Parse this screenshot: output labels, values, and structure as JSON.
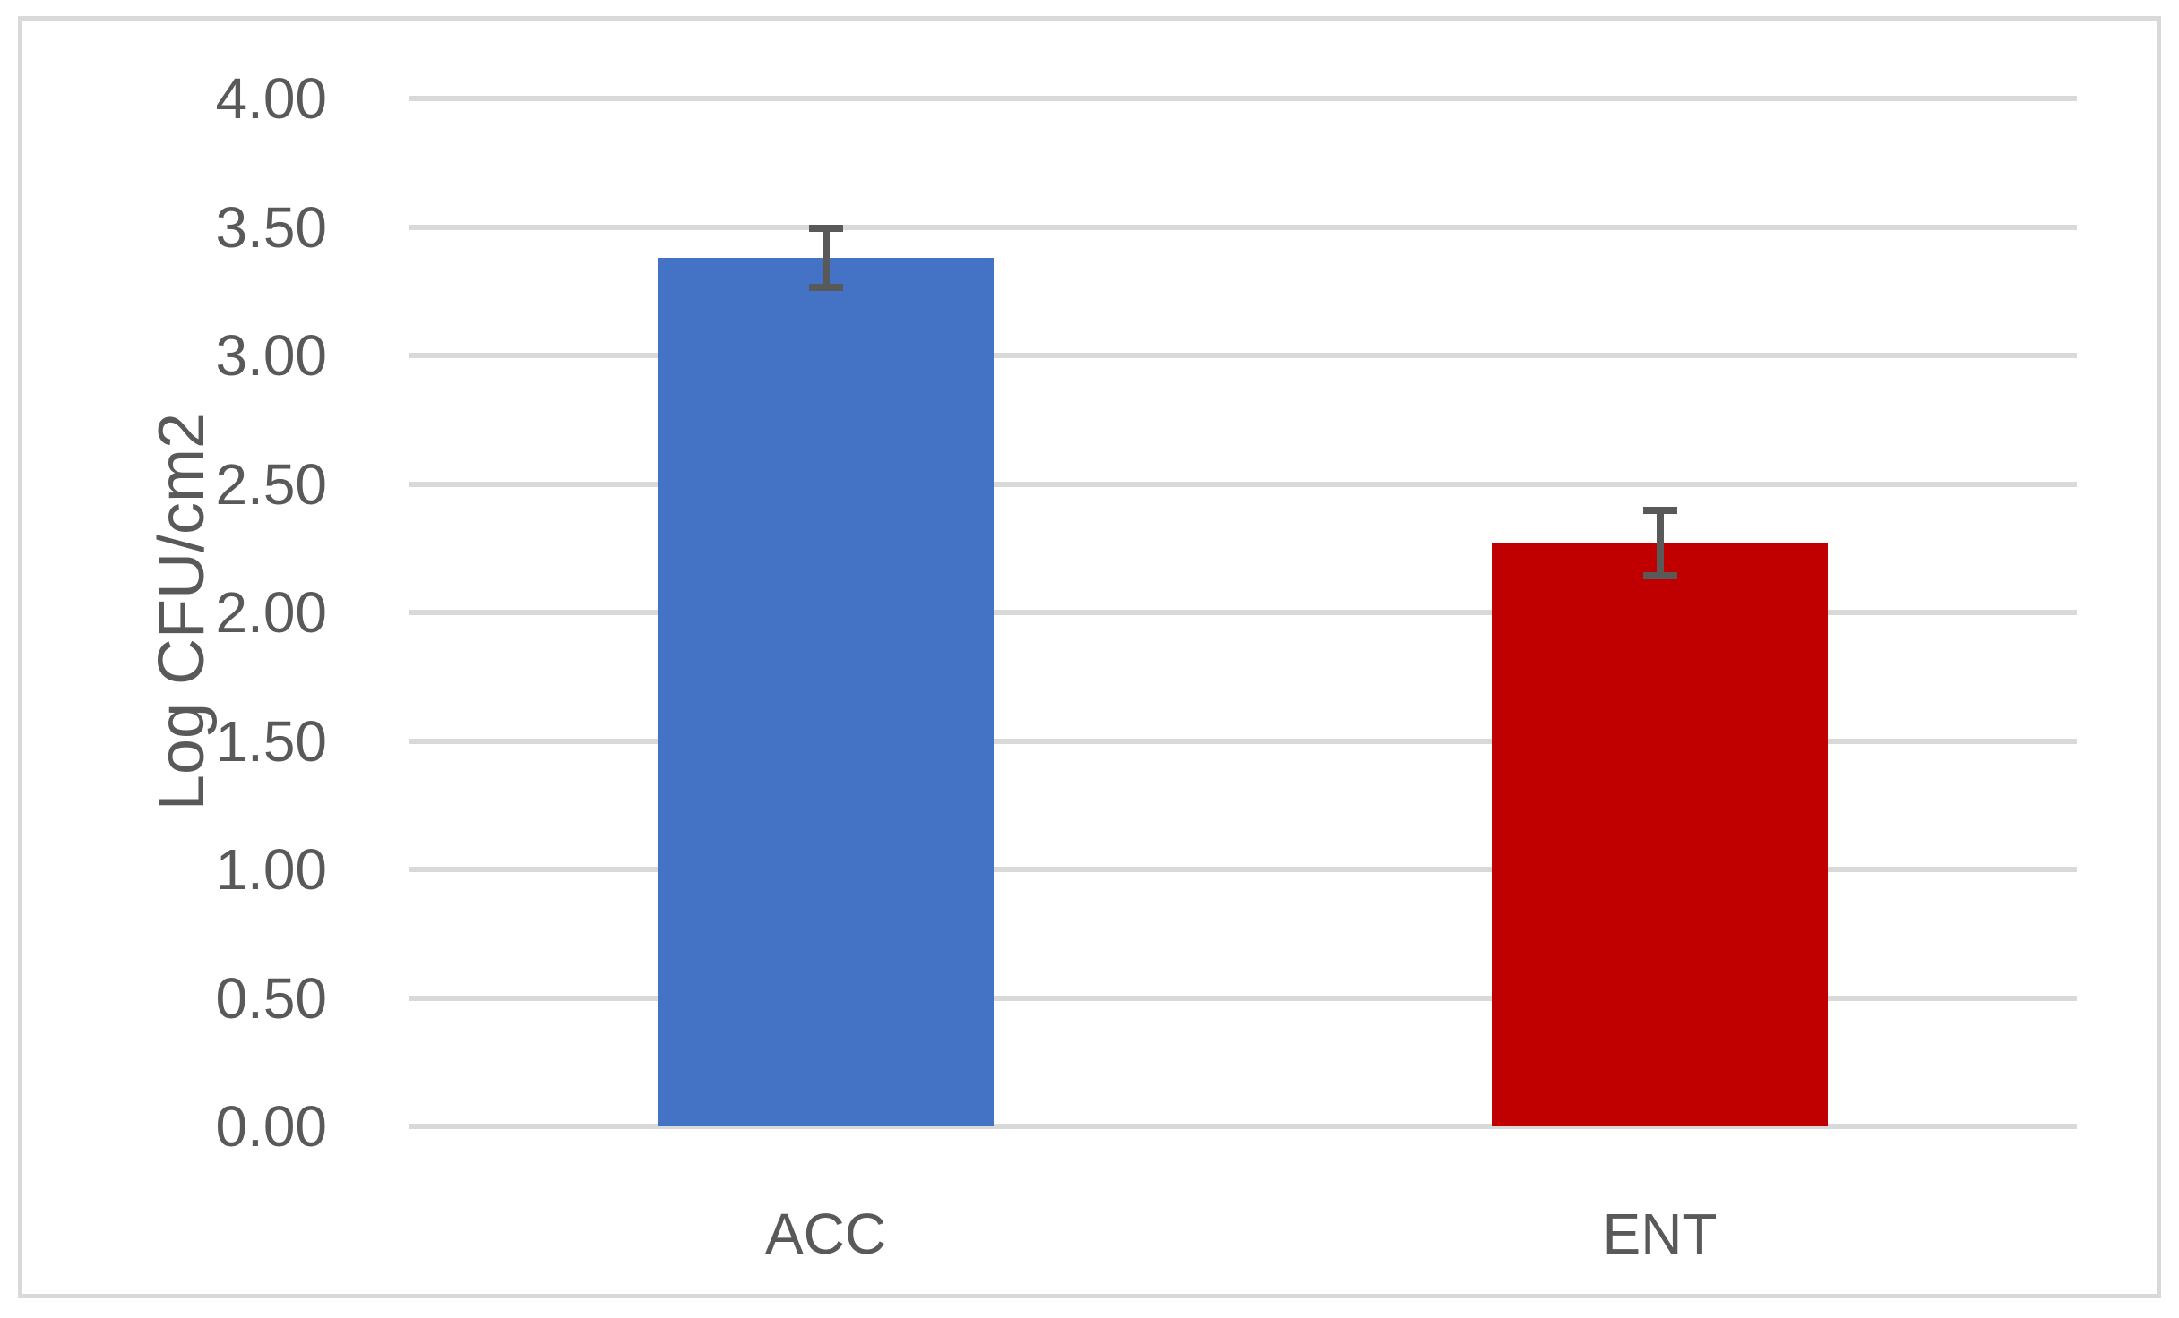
{
  "chart_data": {
    "type": "bar",
    "title": "",
    "categories": [
      "ACC",
      "ENT"
    ],
    "series": [
      {
        "name": "Log CFU/cm2",
        "values": [
          3.38,
          2.27
        ],
        "errors": [
          0.13,
          0.14
        ],
        "colors": [
          "#4472c4",
          "#c00000"
        ]
      }
    ],
    "xlabel": "",
    "ylabel": "Log CFU/cm2",
    "ylim": [
      0,
      4
    ],
    "ytick_step": 0.5,
    "ytick_labels": [
      "0.00",
      "0.50",
      "1.00",
      "1.50",
      "2.00",
      "2.50",
      "3.00",
      "3.50",
      "4.00"
    ],
    "grid": true,
    "legend_position": "none"
  },
  "styles": {
    "gridline_color": "#d9d9d9",
    "axis_line_color": "#d9d9d9",
    "axis_text_color": "#595959",
    "error_bar_color": "#595959",
    "frame_border_color": "#d9d9d9",
    "background_color": "#ffffff"
  }
}
